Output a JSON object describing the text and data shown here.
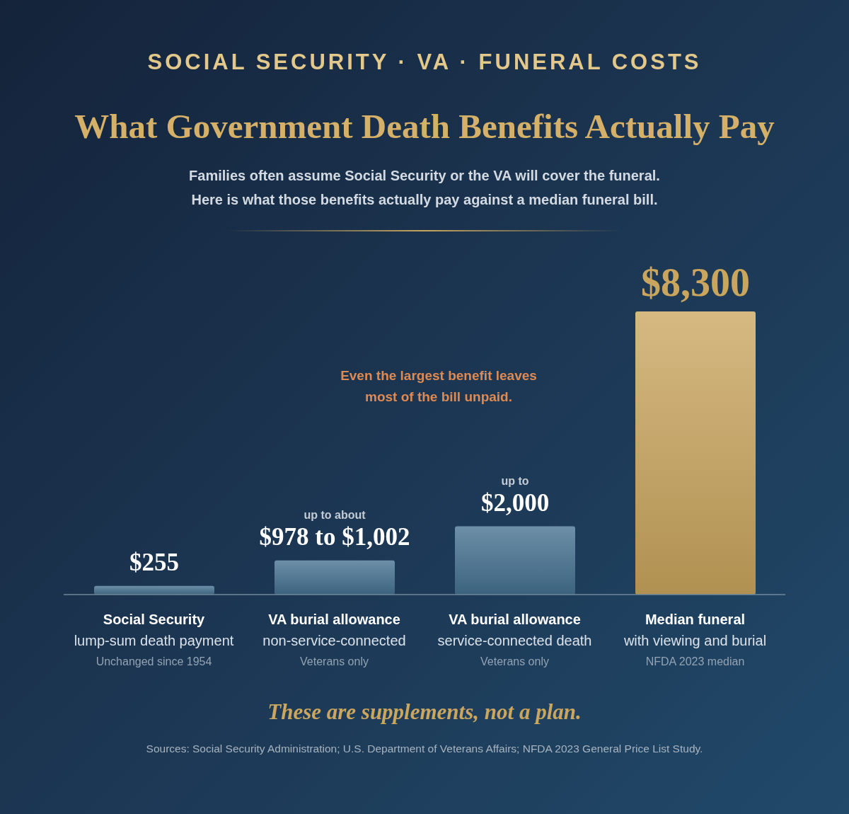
{
  "chart_data": {
    "type": "bar",
    "title": "What Government Death Benefits Actually Pay",
    "subtitle": "Families often assume Social Security or the VA will cover the funeral.\nHere is what those benefits actually pay against a median funeral bill.",
    "categories": [
      "Social Security\nlump-sum death payment\nUnchanged since 1954",
      "VA burial allowance\nnon-service-connected\nVeterans only",
      "VA burial allowance\nservice-connected death\nVeterans only",
      "Median funeral\nwith viewing and burial\nNFDA 2023 median"
    ],
    "values": [
      255,
      1002,
      2000,
      8300
    ],
    "colors": [
      "#44708f",
      "#44708f",
      "#44708f",
      "#c9a55d"
    ],
    "value_labels": [
      "$255",
      "up to about\n$978 to $1,002",
      "up to\n$2,000",
      "$8,300"
    ],
    "tick_labels": "x",
    "annotations": [
      "SOCIAL SECURITY · VA · FUNERAL COSTS",
      "Even the largest benefit leaves most of the bill unpaid.",
      "These are supplements, not a plan.",
      "Sources: Social Security Administration; U.S. Department of Veterans Affairs; NFDA 2023 General Price List Study."
    ]
  }
}
